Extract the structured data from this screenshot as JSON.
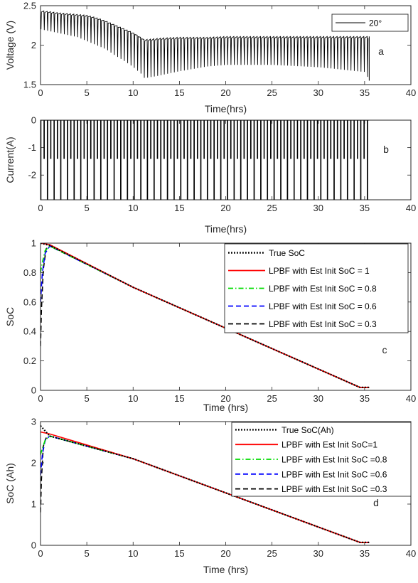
{
  "chart_data": [
    {
      "type": "line",
      "panel_letter": "a",
      "xlabel": "Time(hrs)",
      "ylabel": "Voltage (V)",
      "xlim": [
        0,
        40
      ],
      "ylim": [
        1.5,
        2.5
      ],
      "xticks": [
        "0",
        "5",
        "10",
        "15",
        "20",
        "25",
        "30",
        "35",
        "40"
      ],
      "yticks": [
        "1.5",
        "2",
        "2.5"
      ],
      "legend_position": "top-right",
      "series": [
        {
          "name": "20°",
          "color": "#000000",
          "x": [
            0,
            2,
            4,
            5,
            6,
            7,
            8,
            9,
            10,
            10.8,
            11.2,
            13,
            15,
            18,
            20,
            25,
            30,
            35,
            35.5
          ],
          "y": [
            2.44,
            2.41,
            2.39,
            2.38,
            2.35,
            2.31,
            2.26,
            2.21,
            2.16,
            2.1,
            2.07,
            2.09,
            2.1,
            2.1,
            2.11,
            2.11,
            2.11,
            2.11,
            2.11
          ],
          "pulse_dip_min": [
            2.2,
            2.15,
            2.1,
            2.05,
            2.0,
            1.95,
            1.87,
            1.8,
            1.72,
            1.64,
            1.58,
            1.62,
            1.67,
            1.73,
            1.75,
            1.75,
            1.72,
            1.66,
            1.55
          ]
        }
      ]
    },
    {
      "type": "line",
      "panel_letter": "b",
      "xlabel": "Time(hrs)",
      "ylabel": "Current(A)",
      "xlim": [
        0,
        40
      ],
      "ylim": [
        -2.9,
        0
      ],
      "xticks": [
        "0",
        "5",
        "10",
        "15",
        "20",
        "25",
        "30",
        "35",
        "40"
      ],
      "yticks": [
        "-2",
        "-1",
        "0"
      ],
      "series": [
        {
          "name": "",
          "color": "#000000",
          "x": [
            0,
            35.5
          ],
          "y_rest": 0,
          "y_discharge_levels": [
            -1.4,
            -2.9
          ]
        }
      ]
    },
    {
      "type": "line",
      "panel_letter": "c",
      "xlabel": "Time (hrs)",
      "ylabel": "SoC",
      "xlim": [
        0,
        40
      ],
      "ylim": [
        0,
        1
      ],
      "xticks": [
        "0",
        "5",
        "10",
        "15",
        "20",
        "25",
        "30",
        "35",
        "40"
      ],
      "yticks": [
        "0",
        "0.2",
        "0.4",
        "0.6",
        "0.8",
        "1"
      ],
      "legend_position": "top-right",
      "series": [
        {
          "name": "True SoC",
          "color": "#000000",
          "style": "dotted",
          "x": [
            0,
            1,
            10,
            34.5,
            35.5
          ],
          "y": [
            1.0,
            0.985,
            0.7,
            0.02,
            0.02
          ]
        },
        {
          "name": "LPBF with Est Init SoC = 1",
          "color": "#ff0000",
          "style": "solid",
          "x": [
            0,
            1,
            10,
            34.5,
            35.5
          ],
          "y": [
            1.0,
            0.99,
            0.7,
            0.02,
            0.02
          ]
        },
        {
          "name": "LPBF with Est Init SoC = 0.8",
          "color": "#00dd00",
          "style": "dashdot",
          "x": [
            0,
            0.2,
            0.5,
            1,
            10,
            34.5,
            35.5
          ],
          "y": [
            0.8,
            0.87,
            0.95,
            0.98,
            0.7,
            0.02,
            0.02
          ]
        },
        {
          "name": "LPBF with Est Init SoC = 0.6",
          "color": "#0000ff",
          "style": "dashed",
          "x": [
            0,
            0.2,
            0.5,
            1,
            10,
            34.5,
            35.5
          ],
          "y": [
            0.6,
            0.8,
            0.93,
            0.98,
            0.7,
            0.02,
            0.02
          ]
        },
        {
          "name": "LPBF with Est Init SoC = 0.3",
          "color": "#000000",
          "style": "dashed",
          "x": [
            0,
            0.1,
            0.3,
            0.6,
            1,
            10,
            34.5,
            35.5
          ],
          "y": [
            0.3,
            0.55,
            0.82,
            0.96,
            0.985,
            0.7,
            0.02,
            0.02
          ]
        }
      ]
    },
    {
      "type": "line",
      "panel_letter": "d",
      "xlabel": "Time (hrs)",
      "ylabel": "SoC (Ah)",
      "xlim": [
        0,
        40
      ],
      "ylim": [
        0,
        3
      ],
      "xticks": [
        "0",
        "5",
        "10",
        "15",
        "20",
        "25",
        "30",
        "35",
        "40"
      ],
      "yticks": [
        "0",
        "1",
        "2",
        "3"
      ],
      "legend_position": "top-right",
      "series": [
        {
          "name": "True SoC(Ah)",
          "color": "#000000",
          "style": "dotted",
          "x": [
            0,
            1,
            10,
            34.5,
            35.5
          ],
          "y": [
            2.9,
            2.65,
            2.1,
            0.07,
            0.07
          ]
        },
        {
          "name": "LPBF with Est Init SoC=1",
          "color": "#ff0000",
          "style": "solid",
          "x": [
            0,
            1,
            10,
            34.5,
            35.5
          ],
          "y": [
            2.75,
            2.7,
            2.1,
            0.07,
            0.07
          ]
        },
        {
          "name": "LPBF with Est Init SoC =0.8",
          "color": "#00dd00",
          "style": "dashdot",
          "x": [
            0,
            0.2,
            0.5,
            1,
            10,
            34.5,
            35.5
          ],
          "y": [
            2.2,
            2.35,
            2.55,
            2.65,
            2.1,
            0.07,
            0.07
          ]
        },
        {
          "name": "LPBF with Est Init SoC =0.6",
          "color": "#0000ff",
          "style": "dashed",
          "x": [
            0,
            0.2,
            0.5,
            1,
            10,
            34.5,
            35.5
          ],
          "y": [
            1.7,
            2.2,
            2.55,
            2.65,
            2.1,
            0.07,
            0.07
          ]
        },
        {
          "name": "LPBF with Est Init SoC =0.3",
          "color": "#000000",
          "style": "dashed",
          "x": [
            0,
            0.1,
            0.3,
            0.6,
            1,
            10,
            34.5,
            35.5
          ],
          "y": [
            0.8,
            1.6,
            2.4,
            2.6,
            2.65,
            2.1,
            0.07,
            0.07
          ]
        }
      ]
    }
  ]
}
